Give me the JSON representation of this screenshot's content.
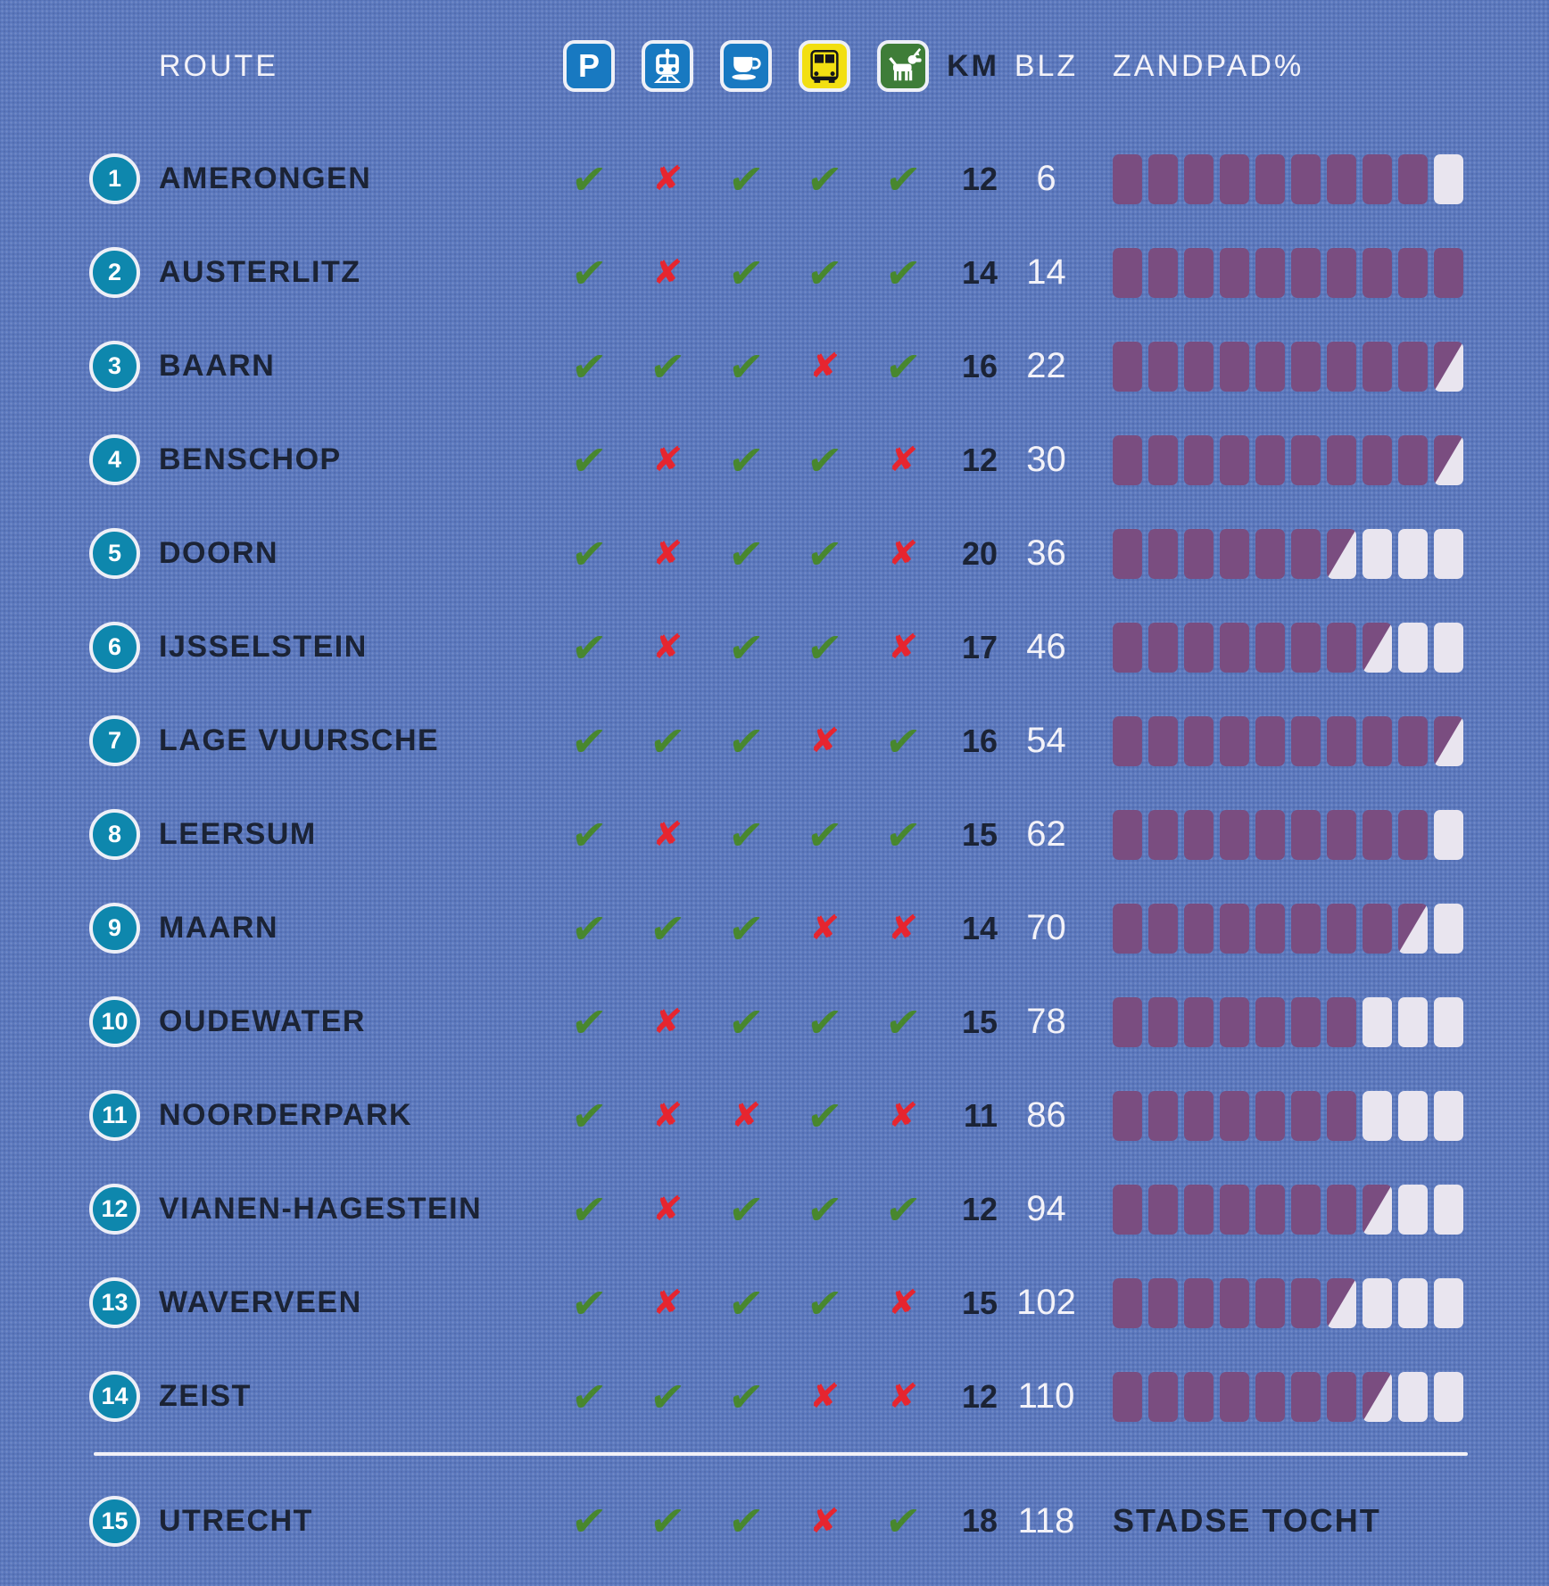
{
  "header": {
    "route_label": "ROUTE",
    "km_label": "KM",
    "blz_label": "BLZ",
    "zandpad_label": "ZANDPAD%",
    "icons": [
      {
        "name": "parking",
        "glyph": "P"
      },
      {
        "name": "train"
      },
      {
        "name": "coffee"
      },
      {
        "name": "bus"
      },
      {
        "name": "dog"
      }
    ]
  },
  "glyphs": {
    "check": "✔",
    "cross": "✘"
  },
  "amenity_order": [
    "parking",
    "train",
    "coffee",
    "bus",
    "dog"
  ],
  "colors": {
    "bg": "#5b78bd",
    "navy": "#1b2335",
    "white": "#f3f2f8",
    "badge": "#0e87ad",
    "sign-blue": "#1879c1",
    "bus-yellow": "#f2df12",
    "dog-green": "#3e7d38",
    "check-green": "#48872e",
    "cross-red": "#e6252f",
    "block-purple": "#7a4d80",
    "block-empty": "#e9e5ef"
  },
  "rows": [
    {
      "nr": 1,
      "name": "AMERONGEN",
      "amenities": [
        true,
        false,
        true,
        true,
        true
      ],
      "km": 12,
      "blz": 6,
      "zandpad": {
        "full": 9,
        "half": 0,
        "empty": 1
      },
      "zandpad_pct": 90
    },
    {
      "nr": 2,
      "name": "AUSTERLITZ",
      "amenities": [
        true,
        false,
        true,
        true,
        true
      ],
      "km": 14,
      "blz": 14,
      "zandpad": {
        "full": 10,
        "half": 0,
        "empty": 0
      },
      "zandpad_pct": 100
    },
    {
      "nr": 3,
      "name": "BAARN",
      "amenities": [
        true,
        true,
        true,
        false,
        true
      ],
      "km": 16,
      "blz": 22,
      "zandpad": {
        "full": 9,
        "half": 1,
        "empty": 0
      },
      "zandpad_pct": 95
    },
    {
      "nr": 4,
      "name": "BENSCHOP",
      "amenities": [
        true,
        false,
        true,
        true,
        false
      ],
      "km": 12,
      "blz": 30,
      "zandpad": {
        "full": 9,
        "half": 1,
        "empty": 0
      },
      "zandpad_pct": 95
    },
    {
      "nr": 5,
      "name": "DOORN",
      "amenities": [
        true,
        false,
        true,
        true,
        false
      ],
      "km": 20,
      "blz": 36,
      "zandpad": {
        "full": 6,
        "half": 1,
        "empty": 3
      },
      "zandpad_pct": 65
    },
    {
      "nr": 6,
      "name": "IJSSELSTEIN",
      "amenities": [
        true,
        false,
        true,
        true,
        false
      ],
      "km": 17,
      "blz": 46,
      "zandpad": {
        "full": 7,
        "half": 1,
        "empty": 2
      },
      "zandpad_pct": 75
    },
    {
      "nr": 7,
      "name": "LAGE VUURSCHE",
      "amenities": [
        true,
        true,
        true,
        false,
        true
      ],
      "km": 16,
      "blz": 54,
      "zandpad": {
        "full": 9,
        "half": 1,
        "empty": 0
      },
      "zandpad_pct": 95
    },
    {
      "nr": 8,
      "name": "LEERSUM",
      "amenities": [
        true,
        false,
        true,
        true,
        true
      ],
      "km": 15,
      "blz": 62,
      "zandpad": {
        "full": 9,
        "half": 0,
        "empty": 1
      },
      "zandpad_pct": 90
    },
    {
      "nr": 9,
      "name": "MAARN",
      "amenities": [
        true,
        true,
        true,
        false,
        false
      ],
      "km": 14,
      "blz": 70,
      "zandpad": {
        "full": 8,
        "half": 1,
        "empty": 1
      },
      "zandpad_pct": 85
    },
    {
      "nr": 10,
      "name": "OUDEWATER",
      "amenities": [
        true,
        false,
        true,
        true,
        true
      ],
      "km": 15,
      "blz": 78,
      "zandpad": {
        "full": 7,
        "half": 0,
        "empty": 3
      },
      "zandpad_pct": 70
    },
    {
      "nr": 11,
      "name": "NOORDERPARK",
      "amenities": [
        true,
        false,
        false,
        true,
        false
      ],
      "km": 11,
      "blz": 86,
      "zandpad": {
        "full": 7,
        "half": 0,
        "empty": 3
      },
      "zandpad_pct": 70
    },
    {
      "nr": 12,
      "name": "VIANEN-HAGESTEIN",
      "amenities": [
        true,
        false,
        true,
        true,
        true
      ],
      "km": 12,
      "blz": 94,
      "zandpad": {
        "full": 7,
        "half": 1,
        "empty": 2
      },
      "zandpad_pct": 75
    },
    {
      "nr": 13,
      "name": "WAVERVEEN",
      "amenities": [
        true,
        false,
        true,
        true,
        false
      ],
      "km": 15,
      "blz": 102,
      "zandpad": {
        "full": 6,
        "half": 1,
        "empty": 3
      },
      "zandpad_pct": 65
    },
    {
      "nr": 14,
      "name": "ZEIST",
      "amenities": [
        true,
        true,
        true,
        false,
        false
      ],
      "km": 12,
      "blz": 110,
      "zandpad": {
        "full": 7,
        "half": 1,
        "empty": 2
      },
      "zandpad_pct": 75
    },
    {
      "nr": 15,
      "name": "UTRECHT",
      "amenities": [
        true,
        true,
        true,
        false,
        true
      ],
      "km": 18,
      "blz": 118,
      "zandpad_text": "STADSE TOCHT"
    }
  ]
}
